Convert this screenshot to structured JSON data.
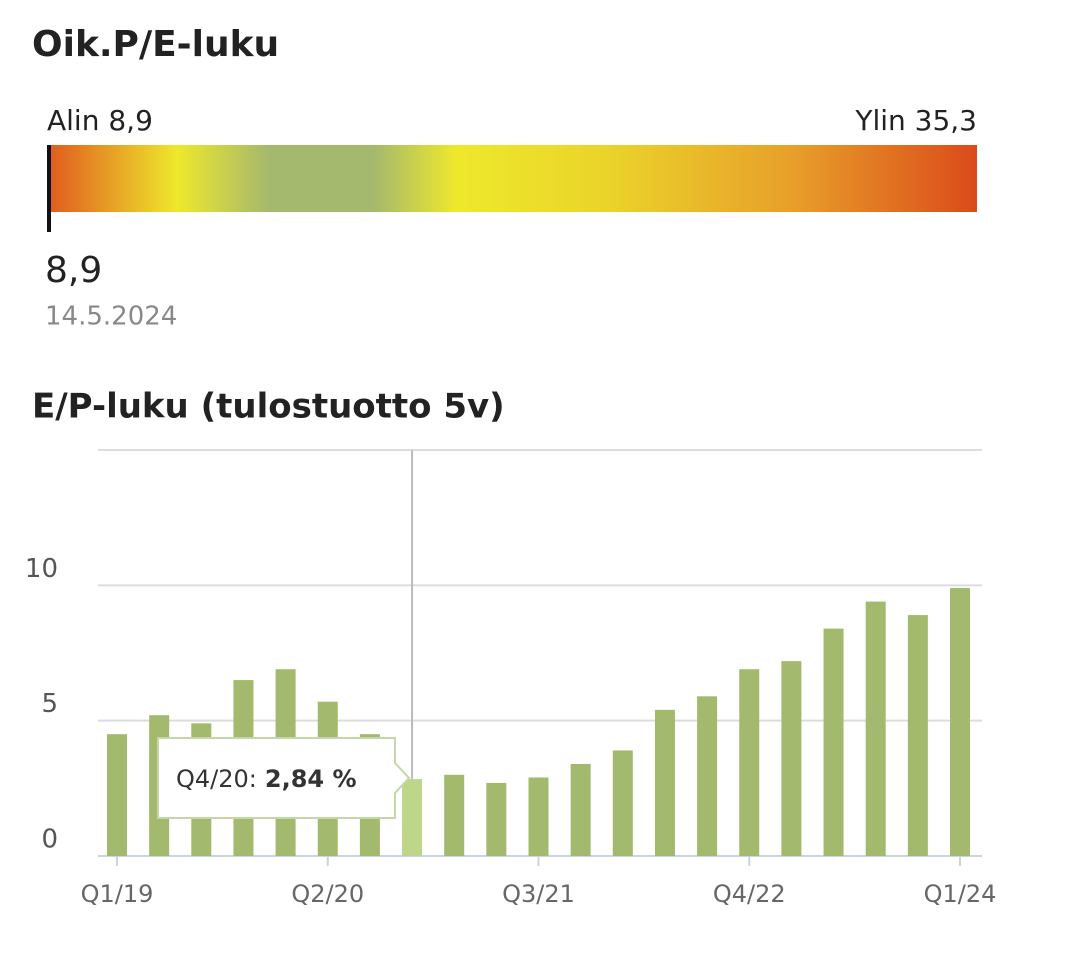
{
  "gauge": {
    "title": "Oik.P/E-luku",
    "min": 8.9,
    "max": 35.3,
    "min_label": "Alin 8,9",
    "max_label": "Ylin 35,3",
    "value": 8.9,
    "value_label": "8,9",
    "date": "14.5.2024"
  },
  "chart_data": {
    "type": "bar",
    "title": "E/P-luku (tulostuotto 5v)",
    "categories": [
      "Q1/19",
      null,
      null,
      null,
      null,
      "Q2/20",
      null,
      null,
      null,
      null,
      "Q3/21",
      null,
      null,
      null,
      null,
      "Q4/22",
      null,
      null,
      null,
      null,
      "Q1/24"
    ],
    "values": [
      4.5,
      5.2,
      4.9,
      6.5,
      6.9,
      5.7,
      4.5,
      2.84,
      3.0,
      2.7,
      2.9,
      3.4,
      3.9,
      5.4,
      5.9,
      6.9,
      7.2,
      8.4,
      9.4,
      8.9,
      9.9
    ],
    "color": "#a3b96d",
    "highlight_color": "#bdd68a",
    "ylim": [
      0,
      15
    ],
    "yticks": [
      0,
      5,
      10
    ],
    "grid": true,
    "tooltip": {
      "label": "Q4/20:",
      "value": 2.84,
      "value_label": "2,84 %"
    }
  }
}
